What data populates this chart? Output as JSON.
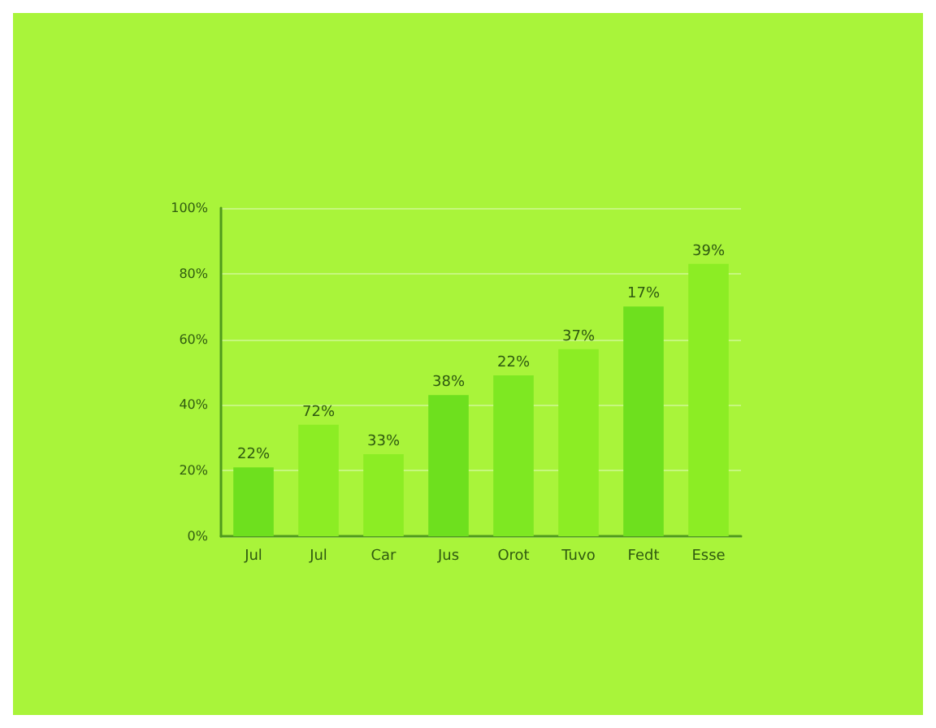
{
  "chart_data": {
    "type": "bar",
    "categories": [
      "Jul",
      "Jul",
      "Car",
      "Jus",
      "Orot",
      "Tuvo",
      "Fedt",
      "Esse"
    ],
    "values": [
      21,
      34,
      25,
      43,
      49,
      57,
      70,
      83
    ],
    "colors": [
      "#6ee01e",
      "#8ced24",
      "#8ced24",
      "#6ee01e",
      "#7ee822",
      "#8ced24",
      "#6ee01e",
      "#8ced24"
    ],
    "annotations": [
      "22%",
      "72%",
      "33%",
      "38%",
      "22%",
      "37%",
      "17%",
      "39%"
    ],
    "ylim": [
      0,
      100
    ],
    "yticks": [
      {
        "value": 0,
        "label": "0%"
      },
      {
        "value": 20,
        "label": "20%"
      },
      {
        "value": 40,
        "label": "40%"
      },
      {
        "value": 60,
        "label": "60%"
      },
      {
        "value": 80,
        "label": "80%"
      },
      {
        "value": 100,
        "label": "100%"
      }
    ],
    "grid": "y"
  }
}
